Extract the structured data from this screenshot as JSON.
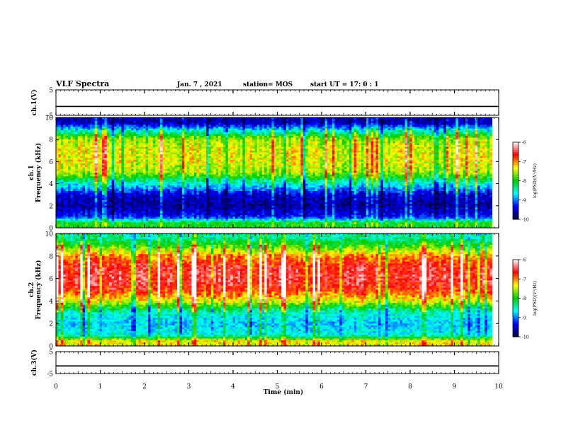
{
  "header": {
    "title": "VLF Spectra",
    "date": "Jan. 7 , 2021",
    "station": "station= MOS",
    "start": "start UT =  17: 0 : 1"
  },
  "colormap": [
    "#ffffff",
    "#ff0000",
    "#ffff00",
    "#00cc00",
    "#00ffff",
    "#0000ff",
    "#000040"
  ],
  "chart_data": [
    {
      "type": "line",
      "panel": "ch1-waveform",
      "ylabel": "ch.1(V)",
      "ylim": [
        -5,
        5
      ],
      "yticks": [
        5,
        -5
      ],
      "x": [
        0,
        10
      ],
      "series": [
        {
          "values": [
            -1.5,
            -1.5
          ]
        }
      ]
    },
    {
      "type": "heatmap",
      "panel": "ch1-spectrogram",
      "ylabel": "ch.1\nFrequency (kHz)",
      "ylim": [
        0,
        10
      ],
      "yticks": [
        0,
        2,
        4,
        6,
        8,
        10
      ],
      "xlim": [
        0,
        9.85
      ],
      "levels": [
        {
          "freq": 9.5,
          "log_psd": -9.6
        },
        {
          "freq": 8.8,
          "log_psd": -8.6
        },
        {
          "freq": 8.0,
          "log_psd": -7.6
        },
        {
          "freq": 7.0,
          "log_psd": -7.4
        },
        {
          "freq": 6.0,
          "log_psd": -7.4
        },
        {
          "freq": 5.0,
          "log_psd": -7.6
        },
        {
          "freq": 4.0,
          "log_psd": -8.6
        },
        {
          "freq": 3.0,
          "log_psd": -9.5
        },
        {
          "freq": 2.0,
          "log_psd": -9.7
        },
        {
          "freq": 1.0,
          "log_psd": -9.3
        },
        {
          "freq": 0.4,
          "log_psd": -8.0
        }
      ],
      "colorbar": {
        "label": "log(PSD)(V²/Hz)",
        "ticks": [
          -6,
          -7,
          -8,
          -9,
          -10
        ],
        "range": [
          -10,
          -6
        ]
      }
    },
    {
      "type": "heatmap",
      "panel": "ch2-spectrogram",
      "ylabel": "ch.2\nFrequency (kHz)",
      "ylim": [
        0,
        10
      ],
      "yticks": [
        0,
        2,
        4,
        6,
        8,
        10
      ],
      "xlim": [
        0,
        9.85
      ],
      "levels": [
        {
          "freq": 9.6,
          "log_psd": -8.4
        },
        {
          "freq": 8.8,
          "log_psd": -7.8
        },
        {
          "freq": 8.0,
          "log_psd": -7.0
        },
        {
          "freq": 7.0,
          "log_psd": -6.6
        },
        {
          "freq": 6.0,
          "log_psd": -6.5
        },
        {
          "freq": 5.0,
          "log_psd": -6.7
        },
        {
          "freq": 4.0,
          "log_psd": -7.4
        },
        {
          "freq": 3.0,
          "log_psd": -8.5
        },
        {
          "freq": 2.0,
          "log_psd": -8.8
        },
        {
          "freq": 1.0,
          "log_psd": -8.6
        },
        {
          "freq": 0.4,
          "log_psd": -7.3
        }
      ],
      "colorbar": {
        "label": "log(PSD)(V²/Hz)",
        "ticks": [
          -6,
          -7,
          -8,
          -9,
          -10
        ],
        "range": [
          -10,
          -6
        ]
      }
    },
    {
      "type": "line",
      "panel": "ch3-waveform",
      "ylabel": "ch.3(V)",
      "ylim": [
        -5,
        5
      ],
      "yticks": [
        5,
        -5
      ],
      "x": [
        0,
        10
      ],
      "series": [
        {
          "values": [
            -1.5,
            -1.5
          ]
        }
      ]
    }
  ],
  "x_axis": {
    "label": "Time (min)",
    "ticks": [
      0,
      1,
      2,
      3,
      4,
      5,
      6,
      7,
      8,
      9,
      10
    ],
    "xlim": [
      0,
      10
    ]
  }
}
